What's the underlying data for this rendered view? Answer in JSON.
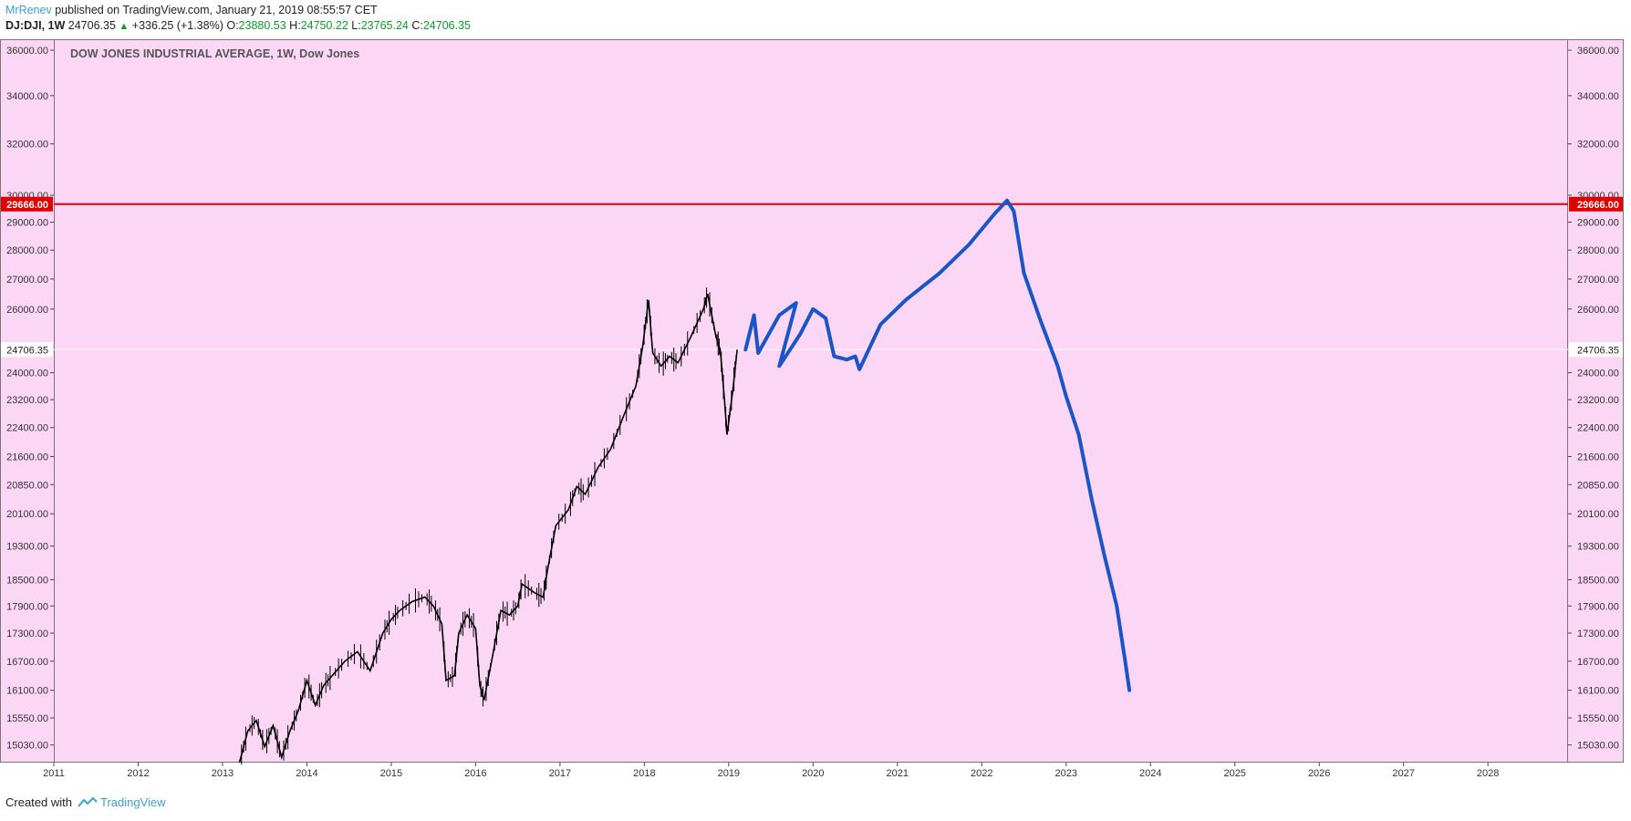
{
  "header": {
    "author": "MrRenev",
    "published": "published on TradingView.com, January 21, 2019 08:55:57 CET",
    "symbol": "DJ:DJI, 1W",
    "last": "24706.35",
    "change": "+336.25 (+1.38%)",
    "o_label": "O:",
    "o_val": "23880.53",
    "h_label": "H:",
    "h_val": "24750.22",
    "l_label": "L:",
    "l_val": "23765.24",
    "c_label": "C:",
    "c_val": "24706.35"
  },
  "footer": {
    "created_with": "Created with",
    "brand": "TradingView"
  },
  "colors": {
    "background": "#fcd7f5",
    "resistance": "#e00000",
    "drawing": "#1a55c8",
    "candles": "#000000"
  },
  "chart_data": {
    "type": "line",
    "title": "DOW JONES INDUSTRIAL AVERAGE, 1W, Dow Jones",
    "y_scale": "log",
    "ylim": [
      14700,
      36500
    ],
    "y_ticks": [
      15030,
      15550,
      16100,
      16700,
      17300,
      17900,
      18500,
      19300,
      20100,
      20850,
      21600,
      22400,
      23200,
      24000,
      26000,
      27000,
      28000,
      29000,
      30000,
      32000,
      34000,
      36000
    ],
    "y_tick_labels": [
      "15030.00",
      "15550.00",
      "16100.00",
      "16700.00",
      "17300.00",
      "17900.00",
      "18500.00",
      "19300.00",
      "20100.00",
      "20850.00",
      "21600.00",
      "22400.00",
      "23200.00",
      "24000.00",
      "26000.00",
      "27000.00",
      "28000.00",
      "29000.00",
      "30000.00",
      "32000.00",
      "34000.00",
      "36000.00"
    ],
    "x_ticks": [
      "2011",
      "2012",
      "2013",
      "2014",
      "2015",
      "2016",
      "2017",
      "2018",
      "2019",
      "2020",
      "2021",
      "2022",
      "2023",
      "2024",
      "2025",
      "2026",
      "2027",
      "2028"
    ],
    "xlim": [
      2011.0,
      2028.95
    ],
    "resistance_level": 29666.0,
    "resistance_label": "29666.00",
    "current_price_label": "24706.35",
    "current_price": 24706.35,
    "series": [
      {
        "kind": "price",
        "points": [
          [
            2013.2,
            14700
          ],
          [
            2013.3,
            15300
          ],
          [
            2013.4,
            15500
          ],
          [
            2013.5,
            15000
          ],
          [
            2013.6,
            15400
          ],
          [
            2013.7,
            14800
          ],
          [
            2013.8,
            15300
          ],
          [
            2013.9,
            15700
          ],
          [
            2014.0,
            16300
          ],
          [
            2014.1,
            15800
          ],
          [
            2014.2,
            16200
          ],
          [
            2014.3,
            16400
          ],
          [
            2014.45,
            16700
          ],
          [
            2014.6,
            16900
          ],
          [
            2014.75,
            16500
          ],
          [
            2014.9,
            17300
          ],
          [
            2015.0,
            17600
          ],
          [
            2015.1,
            17800
          ],
          [
            2015.25,
            18000
          ],
          [
            2015.4,
            18100
          ],
          [
            2015.5,
            17900
          ],
          [
            2015.6,
            17500
          ],
          [
            2015.65,
            16300
          ],
          [
            2015.75,
            16400
          ],
          [
            2015.8,
            17300
          ],
          [
            2015.9,
            17700
          ],
          [
            2016.0,
            17400
          ],
          [
            2016.05,
            16200
          ],
          [
            2016.1,
            15900
          ],
          [
            2016.2,
            16800
          ],
          [
            2016.3,
            17800
          ],
          [
            2016.4,
            17700
          ],
          [
            2016.5,
            17900
          ],
          [
            2016.55,
            18400
          ],
          [
            2016.7,
            18200
          ],
          [
            2016.8,
            18100
          ],
          [
            2016.85,
            18700
          ],
          [
            2016.95,
            19800
          ],
          [
            2017.1,
            20200
          ],
          [
            2017.2,
            20800
          ],
          [
            2017.3,
            20600
          ],
          [
            2017.45,
            21300
          ],
          [
            2017.6,
            21800
          ],
          [
            2017.75,
            22700
          ],
          [
            2017.9,
            23600
          ],
          [
            2017.98,
            24800
          ],
          [
            2018.05,
            26300
          ],
          [
            2018.1,
            24600
          ],
          [
            2018.2,
            24200
          ],
          [
            2018.3,
            24500
          ],
          [
            2018.4,
            24300
          ],
          [
            2018.55,
            25100
          ],
          [
            2018.7,
            26000
          ],
          [
            2018.75,
            26500
          ],
          [
            2018.85,
            25100
          ],
          [
            2018.9,
            24700
          ],
          [
            2018.95,
            23200
          ],
          [
            2018.98,
            22200
          ],
          [
            2019.05,
            23500
          ],
          [
            2019.1,
            24706
          ]
        ]
      },
      {
        "kind": "projection",
        "points": [
          [
            2019.2,
            24706
          ],
          [
            2019.3,
            25800
          ],
          [
            2019.35,
            24600
          ],
          [
            2019.6,
            25800
          ],
          [
            2019.8,
            26200
          ],
          [
            2019.6,
            24200
          ],
          [
            2019.85,
            25200
          ],
          [
            2020.0,
            26000
          ],
          [
            2020.15,
            25700
          ],
          [
            2020.25,
            24500
          ],
          [
            2020.4,
            24400
          ],
          [
            2020.5,
            24500
          ],
          [
            2020.55,
            24100
          ],
          [
            2020.8,
            25500
          ],
          [
            2021.1,
            26300
          ],
          [
            2021.5,
            27200
          ],
          [
            2021.85,
            28200
          ],
          [
            2022.15,
            29300
          ],
          [
            2022.3,
            29800
          ],
          [
            2022.38,
            29400
          ],
          [
            2022.5,
            27200
          ],
          [
            2022.7,
            25600
          ],
          [
            2022.9,
            24200
          ],
          [
            2023.0,
            23300
          ],
          [
            2023.15,
            22200
          ],
          [
            2023.3,
            20500
          ],
          [
            2023.45,
            19100
          ],
          [
            2023.6,
            17900
          ],
          [
            2023.7,
            16700
          ],
          [
            2023.75,
            16100
          ]
        ]
      }
    ]
  }
}
